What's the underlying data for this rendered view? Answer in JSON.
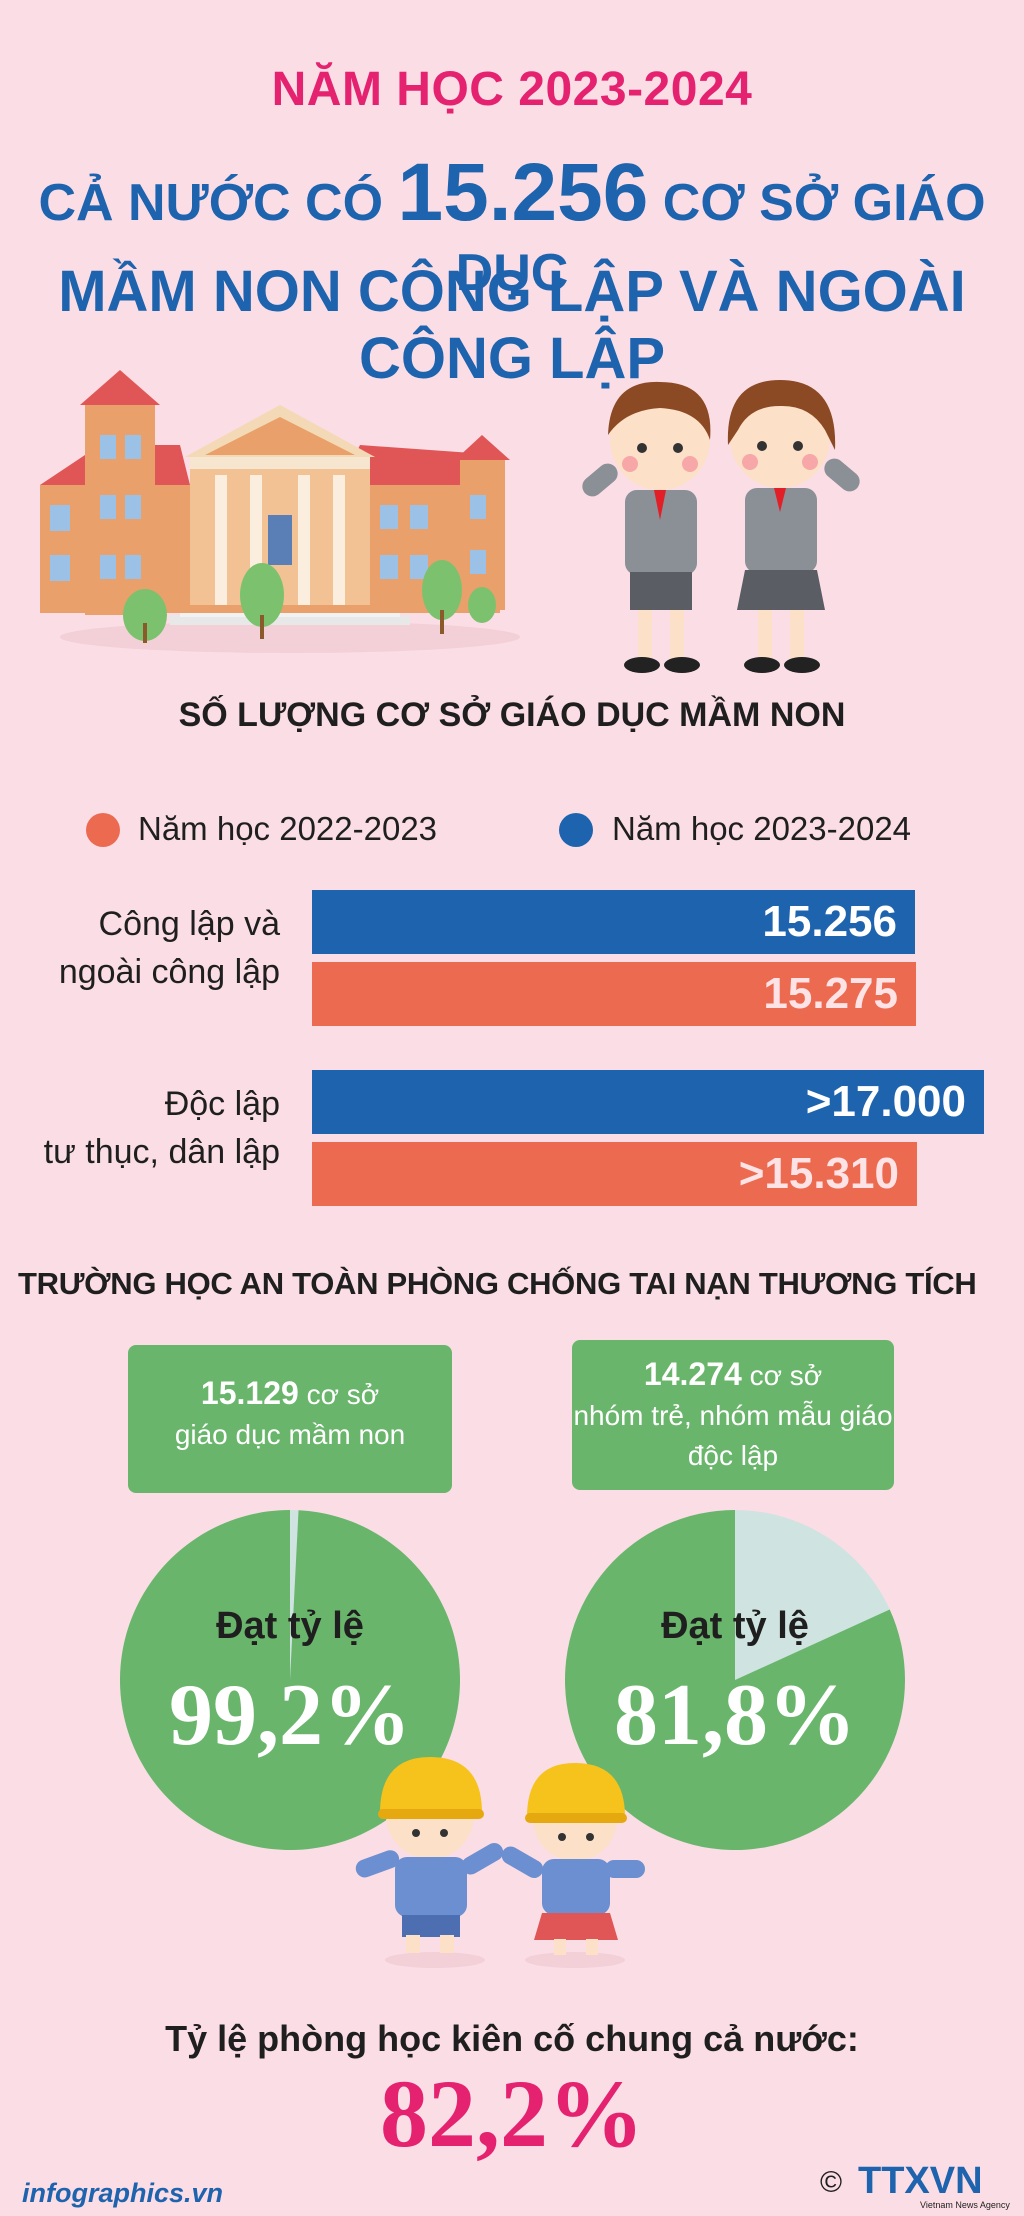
{
  "header": {
    "year": "NĂM HỌC 2023-2024",
    "line1_pre": "CẢ NƯỚC CÓ",
    "line1_number": "15.256",
    "line1_post": "CƠ SỞ GIÁO DỤC",
    "line2": "MẦM NON CÔNG LẬP VÀ NGOÀI CÔNG LẬP"
  },
  "section1": {
    "title": "SỐ LƯỢNG CƠ SỞ GIÁO DỤC MẦM NON"
  },
  "colors": {
    "y2022": "#ec6a50",
    "y2023": "#1e63ad",
    "green": "#6ab56c",
    "pie_rest": "#cfe3e0",
    "accent": "#e4226f"
  },
  "chart_data": [
    {
      "type": "bar",
      "title": "SỐ LƯỢNG CƠ SỞ GIÁO DỤC MẦM NON",
      "categories": [
        "Công lập và ngoài công lập",
        "Độc lập tư thục, dân lập"
      ],
      "category_lines": [
        [
          "Công lập và",
          "ngoài công lập"
        ],
        [
          "Độc lập",
          "tư thục, dân lập"
        ]
      ],
      "series": [
        {
          "name": "Năm học 2023-2024",
          "values": [
            15256,
            17000
          ],
          "labels": [
            "15.256",
            ">17.000"
          ]
        },
        {
          "name": "Năm học 2022-2023",
          "values": [
            15275,
            15310
          ],
          "labels": [
            "15.275",
            ">15.310"
          ]
        }
      ],
      "legend": [
        "Năm học 2022-2023",
        "Năm học 2023-2024"
      ],
      "legend_position": "top",
      "orientation": "horizontal"
    },
    {
      "type": "pie",
      "title": "TRƯỜNG HỌC AN TOÀN PHÒNG CHỐNG TAI NẠN THƯƠNG TÍCH",
      "pies": [
        {
          "count": "15.129",
          "unit": "cơ sở",
          "desc": "giáo dục mầm non",
          "label": "Đạt tỷ lệ",
          "value": 99.2,
          "value_text": "99,2%"
        },
        {
          "count": "14.274",
          "unit": "cơ sở",
          "desc": "nhóm trẻ, nhóm mẫu giáo độc lập",
          "label": "Đạt tỷ lệ",
          "value": 81.8,
          "value_text": "81,8%"
        }
      ]
    }
  ],
  "section2": {
    "title": "TRƯỜNG HỌC AN TOÀN PHÒNG CHỐNG TAI NẠN THƯƠNG TÍCH",
    "card1_count": "15.129",
    "card1_unit": "cơ sở",
    "card1_desc": "giáo dục mầm non",
    "card2_count": "14.274",
    "card2_unit": "cơ sở",
    "card2_desc1": "nhóm trẻ, nhóm mẫu giáo",
    "card2_desc2": "độc lập",
    "pie1_label": "Đạt tỷ lệ",
    "pie1_value": "99,2%",
    "pie2_label": "Đạt tỷ lệ",
    "pie2_value": "81,8%"
  },
  "footer": {
    "caption": "Tỷ lệ phòng học kiên cố chung cả nước:",
    "value": "82,2%",
    "site": "infographics.vn",
    "brand": "TTXVN",
    "brand_sub": "Vietnam News Agency",
    "copyright": "©"
  }
}
